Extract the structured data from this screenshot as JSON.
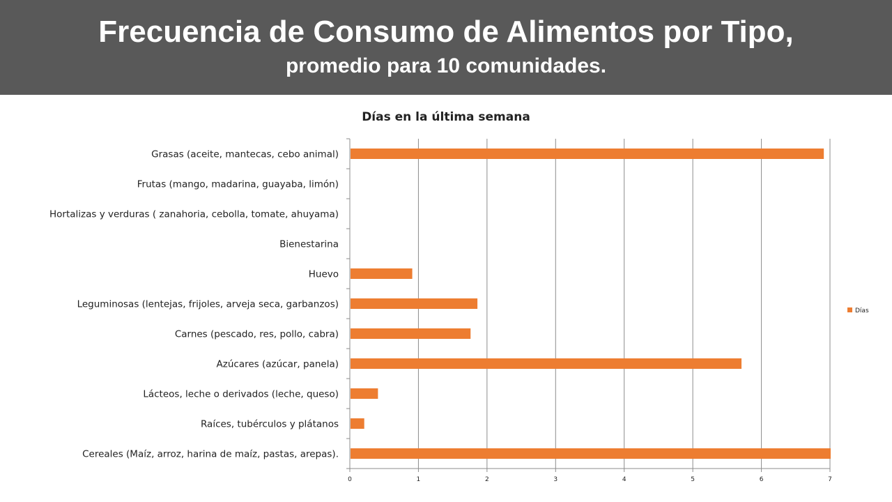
{
  "header": {
    "title": "Frecuencia de Consumo de Alimentos por Tipo,",
    "subtitle": "promedio para 10 comunidades."
  },
  "colors": {
    "banner": "#595959",
    "bar": "#ED7D31",
    "grid": "#8c8c8c"
  },
  "chart_data": {
    "type": "bar",
    "orientation": "horizontal",
    "title": "Días en la última semana",
    "categories": [
      "Cereales (Maíz, arroz, harina de maíz, pastas, arepas).",
      "Raíces, tubérculos y plátanos",
      "Lácteos, leche o derivados (leche, queso)",
      "Azúcares (azúcar, panela)",
      "Carnes (pescado, res, pollo, cabra)",
      "Leguminosas (lentejas, frijoles, arveja seca, garbanzos)",
      "Huevo",
      "Bienestarina",
      "Hortalizas y verduras ( zanahoria, cebolla, tomate, ahuyama)",
      "Frutas (mango, madarina, guayaba, limón)",
      "Grasas (aceite, mantecas, cebo animal)"
    ],
    "series": [
      {
        "name": "Días",
        "values": [
          7.0,
          0.2,
          0.4,
          5.7,
          1.75,
          1.85,
          0.9,
          0,
          0,
          0,
          6.9
        ]
      }
    ],
    "xlim": [
      0,
      7
    ],
    "xticks": [
      "0",
      "1",
      "2",
      "3",
      "4",
      "5",
      "6",
      "7"
    ],
    "grid": true,
    "legend": "right"
  }
}
